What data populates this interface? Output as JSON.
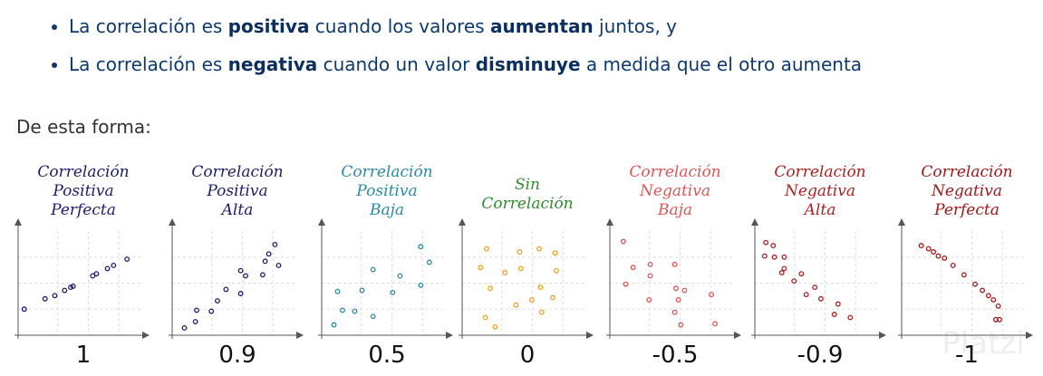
{
  "bullets": [
    [
      {
        "text": "La correlación es "
      },
      {
        "text": "positiva",
        "bold": true
      },
      {
        "text": " cuando los valores "
      },
      {
        "text": "aumentan",
        "bold": true
      },
      {
        "text": " juntos, y"
      }
    ],
    [
      {
        "text": "La correlación es "
      },
      {
        "text": "negativa",
        "bold": true
      },
      {
        "text": " cuando un valor "
      },
      {
        "text": "disminuye",
        "bold": true
      },
      {
        "text": " a medida que el otro aumenta"
      }
    ]
  ],
  "intro": "De esta forma:",
  "watermark": "Platzi",
  "chart_data": [
    {
      "type": "scatter",
      "title": [
        "Correlación",
        "Positiva",
        "Perfecta"
      ],
      "color": "#1c1c6e",
      "coefficient": 1,
      "xlim": [
        0,
        10
      ],
      "ylim": [
        0,
        10
      ],
      "x": [
        0.5,
        2.2,
        3,
        3.8,
        4.3,
        4.5,
        6.1,
        6.4,
        7.3,
        7.8,
        8.9
      ],
      "y": [
        2.5,
        3.5,
        3.8,
        4.3,
        4.6,
        4.7,
        5.7,
        5.9,
        6.4,
        6.7,
        7.3
      ]
    },
    {
      "type": "scatter",
      "title": [
        "Correlación",
        "Positiva",
        "Alta"
      ],
      "color": "#1c1c6e",
      "coefficient": 0.9,
      "xlim": [
        0,
        10
      ],
      "ylim": [
        0,
        10
      ],
      "x": [
        1,
        1.9,
        2,
        3.2,
        3.7,
        4.4,
        5.6,
        5.6,
        6,
        7.4,
        7.6,
        7.9,
        8.4,
        8.7
      ],
      "y": [
        0.7,
        1.3,
        2.4,
        2.3,
        3.3,
        4.4,
        4,
        6.2,
        5.7,
        5.8,
        7.1,
        7.8,
        8.7,
        6.7
      ]
    },
    {
      "type": "scatter",
      "title": [
        "Correlación",
        "Positiva",
        "Baja"
      ],
      "color": "#2a8aa5",
      "coefficient": 0.5,
      "xlim": [
        0,
        10
      ],
      "ylim": [
        0,
        10
      ],
      "x": [
        1,
        1.7,
        1.3,
        2.7,
        3.3,
        4.2,
        4.2,
        5.8,
        6.4,
        8.1,
        8.1,
        8.8
      ],
      "y": [
        1,
        2.4,
        4.2,
        2.3,
        4.3,
        1.8,
        6.3,
        4.1,
        5.7,
        4.8,
        8.5,
        7
      ]
    },
    {
      "type": "scatter",
      "title": [
        "Sin",
        "Correlación"
      ],
      "color": "#2e8b2e",
      "point_color": "#f0a020",
      "coefficient": 0,
      "xlim": [
        0,
        10
      ],
      "ylim": [
        0,
        10
      ],
      "x": [
        2,
        4.7,
        6.3,
        7.6,
        1.5,
        4.8,
        7.7,
        3.5,
        2.3,
        6.4,
        7.4,
        4.4,
        5.7,
        6.5,
        1.9,
        2.7
      ],
      "y": [
        8.3,
        8,
        8.3,
        7.9,
        6.5,
        6.4,
        6.2,
        6,
        4.5,
        4.6,
        3.6,
        2.9,
        3.4,
        2.2,
        1.7,
        0.8
      ]
    },
    {
      "type": "scatter",
      "title": [
        "Correlación",
        "Negativa",
        "Baja"
      ],
      "color": "#e05555",
      "coefficient": -0.5,
      "xlim": [
        0,
        10
      ],
      "ylim": [
        0,
        10
      ],
      "x": [
        1.1,
        1.9,
        3.3,
        5.3,
        1.3,
        3.3,
        5.4,
        3.2,
        5.6,
        6.1,
        8.3,
        5.3,
        8.6,
        5.8
      ],
      "y": [
        9,
        6.5,
        6.8,
        6.8,
        4.9,
        5.7,
        4.5,
        3.4,
        3.4,
        4.3,
        3.9,
        2.2,
        1.1,
        1
      ]
    },
    {
      "type": "scatter",
      "title": [
        "Correlación",
        "Negativa",
        "Alta"
      ],
      "color": "#b02020",
      "coefficient": -0.9,
      "xlim": [
        0,
        10
      ],
      "ylim": [
        0,
        10
      ],
      "x": [
        0.9,
        1.5,
        0.8,
        1.6,
        2.4,
        2.4,
        2.2,
        3.8,
        3.2,
        4.2,
        4.9,
        5.4,
        6.8,
        6.5,
        7.8
      ],
      "y": [
        8.9,
        8.6,
        7.6,
        7.5,
        7.5,
        6.4,
        6,
        5.9,
        5.2,
        3.9,
        4.6,
        3.5,
        3,
        2,
        1.7
      ]
    },
    {
      "type": "scatter",
      "title": [
        "Correlación",
        "Negativa",
        "Perfecta"
      ],
      "color": "#a01818",
      "coefficient": -1,
      "xlim": [
        0,
        10
      ],
      "ylim": [
        0,
        10
      ],
      "x": [
        1.6,
        2.2,
        2.6,
        3,
        3.5,
        4.2,
        5.1,
        6,
        6.6,
        7.1,
        7.5,
        7.9,
        7.7,
        8
      ],
      "y": [
        8.6,
        8.3,
        8,
        7.6,
        7.4,
        6.7,
        5.8,
        4.9,
        4.3,
        3.8,
        3.4,
        2.8,
        1.5,
        1.5
      ]
    }
  ]
}
